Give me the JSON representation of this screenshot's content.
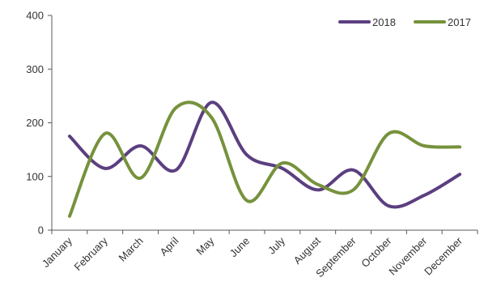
{
  "chart_data": {
    "type": "line",
    "smooth": true,
    "categories": [
      "January",
      "February",
      "March",
      "April",
      "May",
      "June",
      "July",
      "August",
      "September",
      "October",
      "November",
      "December"
    ],
    "ylim": [
      0,
      400
    ],
    "yticks": [
      0,
      100,
      200,
      300,
      400
    ],
    "grid": false,
    "legend_position": "top-right",
    "title": "",
    "xlabel": "",
    "ylabel": "",
    "series": [
      {
        "name": "2018",
        "color": "#5B3F80",
        "values": [
          175,
          115,
          157,
          112,
          238,
          140,
          115,
          75,
          112,
          45,
          65,
          104
        ]
      },
      {
        "name": "2017",
        "color": "#76923C",
        "values": [
          26,
          180,
          97,
          228,
          210,
          55,
          125,
          85,
          75,
          180,
          157,
          155
        ]
      }
    ]
  }
}
